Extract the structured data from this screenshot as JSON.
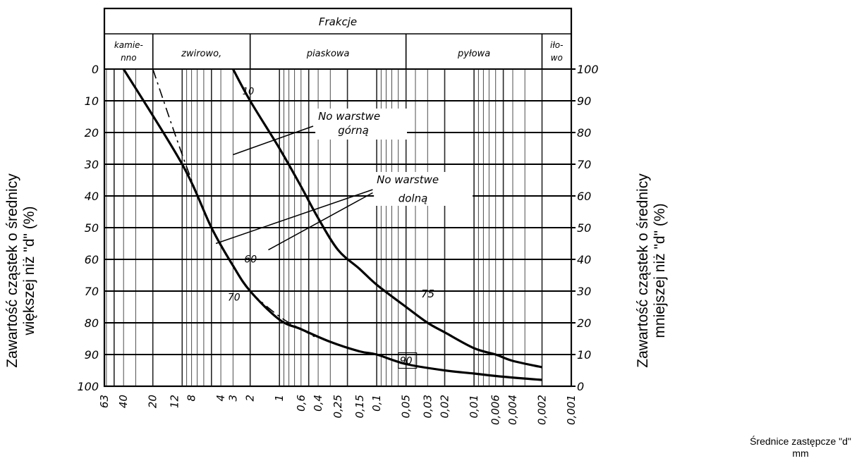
{
  "chart_data": {
    "type": "line",
    "title": "Frakcje",
    "fractions": [
      "kamie-\nnno",
      "zwirowo,",
      "piaskowa",
      "pyłowa",
      "iło-\nwo"
    ],
    "y_left_label": [
      "Zawartość cząstek o średnicy",
      "większej niż \"d\" (%)"
    ],
    "y_right_label": [
      "Zawartość cząstek o średnicy",
      "mniejszej niż \"d\" (%)"
    ],
    "x_label": [
      "Średnice zastępcze \"d\"",
      "mm"
    ],
    "y_left_ticks": [
      "0",
      "10",
      "20",
      "30",
      "40",
      "50",
      "60",
      "70",
      "80",
      "90",
      "100"
    ],
    "y_right_ticks": [
      "100",
      "90",
      "80",
      "70",
      "60",
      "50",
      "40",
      "30",
      "20",
      "10",
      "0"
    ],
    "x_ticks": [
      "63",
      "40",
      "20",
      "12",
      "8",
      "4",
      "3",
      "2",
      "1",
      "0,6",
      "0,4",
      "0,25",
      "0,15",
      "0,1",
      "0,05",
      "0,03",
      "0,02",
      "0,01",
      "0,006",
      "0,004",
      "0,002",
      "0,001"
    ],
    "x_scale": "log",
    "ylim": [
      0,
      100
    ],
    "series": [
      {
        "style": "solid",
        "points": [
          [
            40,
            0
          ],
          [
            10,
            30
          ],
          [
            5,
            50
          ],
          [
            3,
            62
          ],
          [
            2,
            70
          ],
          [
            1,
            79
          ],
          [
            0.6,
            82
          ],
          [
            0.3,
            86
          ],
          [
            0.15,
            89
          ],
          [
            0.1,
            90
          ],
          [
            0.05,
            93
          ],
          [
            0.02,
            95
          ],
          [
            0.01,
            96
          ],
          [
            0.005,
            97
          ],
          [
            0.002,
            98
          ]
        ]
      },
      {
        "style": "solid",
        "points": [
          [
            3,
            0
          ],
          [
            2,
            10
          ],
          [
            1,
            25
          ],
          [
            0.6,
            37
          ],
          [
            0.4,
            47
          ],
          [
            0.25,
            57
          ],
          [
            0.15,
            63
          ],
          [
            0.1,
            68
          ],
          [
            0.05,
            75
          ],
          [
            0.03,
            80
          ],
          [
            0.02,
            83
          ],
          [
            0.01,
            88
          ],
          [
            0.006,
            90
          ],
          [
            0.004,
            92
          ],
          [
            0.002,
            94
          ]
        ]
      },
      {
        "style": "dashed",
        "points": [
          [
            20,
            0
          ],
          [
            12,
            20
          ],
          [
            8,
            35
          ],
          [
            5,
            50
          ],
          [
            3,
            62
          ],
          [
            2,
            70
          ],
          [
            1,
            78
          ],
          [
            0.6,
            82
          ],
          [
            0.4,
            85
          ]
        ]
      }
    ],
    "annotations": [
      "10",
      "No warstwe\ngórną",
      "No warstwe\ndolną",
      "60",
      "70",
      "75",
      "90"
    ],
    "grid": true
  }
}
